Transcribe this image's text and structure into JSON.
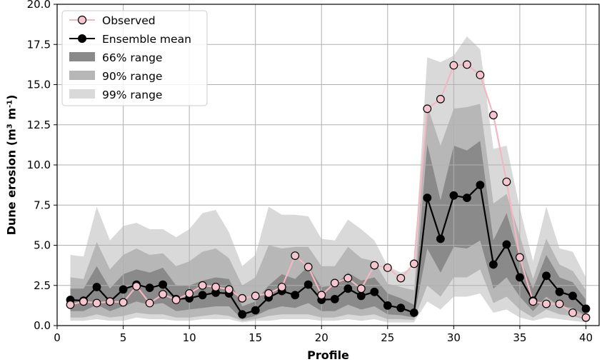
{
  "chart_data": {
    "type": "line",
    "title": "",
    "xlabel": "Profile",
    "ylabel_main": "Dune erosion (m",
    "ylabel_sup1": "3",
    "ylabel_mid": " m",
    "ylabel_sup2": "-1",
    "ylabel_end": ")",
    "xlim": [
      0,
      41
    ],
    "ylim": [
      0,
      20
    ],
    "xticks": [
      0,
      5,
      10,
      15,
      20,
      25,
      30,
      35,
      40
    ],
    "yticks": [
      0.0,
      2.5,
      5.0,
      7.5,
      10.0,
      12.5,
      15.0,
      17.5,
      20.0
    ],
    "xtick_labels": [
      "0",
      "5",
      "10",
      "15",
      "20",
      "25",
      "30",
      "35",
      "40"
    ],
    "ytick_labels": [
      "0.0",
      "2.5",
      "5.0",
      "7.5",
      "10.0",
      "12.5",
      "15.0",
      "17.5",
      "20.0"
    ],
    "grid": true,
    "legend_position": "top-left",
    "x": [
      1,
      2,
      3,
      4,
      5,
      6,
      7,
      8,
      9,
      10,
      11,
      12,
      13,
      14,
      15,
      16,
      17,
      18,
      19,
      20,
      21,
      22,
      23,
      24,
      25,
      26,
      27,
      28,
      29,
      30,
      31,
      32,
      33,
      34,
      35,
      36,
      37,
      38,
      39,
      40
    ],
    "series": [
      {
        "name": "Observed",
        "color": "#f4b6c2",
        "marker": "open-circle",
        "values": [
          1.3,
          1.5,
          1.4,
          1.5,
          1.45,
          2.45,
          1.4,
          1.95,
          1.6,
          2.0,
          2.5,
          2.4,
          2.25,
          1.7,
          1.85,
          2.0,
          2.4,
          4.35,
          3.65,
          1.9,
          2.65,
          2.95,
          2.3,
          3.75,
          3.6,
          2.95,
          3.85,
          13.5,
          14.1,
          16.2,
          16.25,
          15.6,
          13.1,
          8.95,
          4.25,
          1.5,
          1.35,
          1.35,
          0.8,
          0.5
        ]
      },
      {
        "name": "Ensemble mean",
        "color": "#000000",
        "marker": "filled-circle",
        "values": [
          1.6,
          1.55,
          2.4,
          1.5,
          2.25,
          2.55,
          2.35,
          2.55,
          1.65,
          1.7,
          1.9,
          2.05,
          2.0,
          0.7,
          0.95,
          1.75,
          2.15,
          1.9,
          2.55,
          1.6,
          1.65,
          2.3,
          1.85,
          2.1,
          1.25,
          1.1,
          0.8,
          7.95,
          5.4,
          8.1,
          7.95,
          8.75,
          3.8,
          5.05,
          3.0,
          1.55,
          3.1,
          2.1,
          1.85,
          1.05
        ]
      }
    ],
    "bands": [
      {
        "name": "99% range",
        "color": "#d9d9d9",
        "lower": [
          0.3,
          0.3,
          0.4,
          0.3,
          0.3,
          0.5,
          0.4,
          0.4,
          0.3,
          0.3,
          0.4,
          0.4,
          0.4,
          0.2,
          0.3,
          0.3,
          0.4,
          0.4,
          0.4,
          0.3,
          0.3,
          0.4,
          0.3,
          0.4,
          0.2,
          0.2,
          0.2,
          1.5,
          1.0,
          1.8,
          1.8,
          2.0,
          0.8,
          1.0,
          0.5,
          0.3,
          0.5,
          0.4,
          0.3,
          0.2
        ],
        "upper": [
          4.4,
          4.3,
          7.4,
          5.3,
          6.2,
          6.4,
          6.0,
          6.0,
          5.5,
          6.0,
          7.0,
          7.2,
          5.8,
          3.7,
          4.4,
          7.4,
          6.9,
          6.9,
          6.8,
          5.4,
          5.3,
          6.6,
          6.0,
          5.3,
          3.7,
          3.3,
          3.6,
          16.7,
          16.4,
          16.8,
          18.0,
          17.2,
          11.0,
          11.2,
          7.3,
          4.0,
          7.4,
          4.8,
          4.6,
          3.0
        ]
      },
      {
        "name": "90% range",
        "color": "#b7b7b7",
        "lower": [
          0.5,
          0.5,
          0.7,
          0.5,
          0.6,
          0.8,
          0.7,
          0.7,
          0.5,
          0.5,
          0.6,
          0.7,
          0.6,
          0.3,
          0.4,
          0.6,
          0.7,
          0.7,
          0.7,
          0.5,
          0.5,
          0.7,
          0.6,
          0.7,
          0.4,
          0.4,
          0.35,
          2.5,
          1.8,
          3.0,
          3.0,
          3.5,
          1.4,
          1.8,
          1.0,
          0.5,
          1.0,
          0.7,
          0.6,
          0.35
        ],
        "upper": [
          3.0,
          2.9,
          5.2,
          3.5,
          4.4,
          4.8,
          4.4,
          4.5,
          3.7,
          4.0,
          4.6,
          4.8,
          4.2,
          2.5,
          3.0,
          5.0,
          4.8,
          4.9,
          4.9,
          3.7,
          3.7,
          4.9,
          4.2,
          4.0,
          2.6,
          2.4,
          2.2,
          13.7,
          11.2,
          13.5,
          13.6,
          13.8,
          7.6,
          8.2,
          5.6,
          2.9,
          5.4,
          3.8,
          3.4,
          2.2
        ]
      },
      {
        "name": "66% range",
        "color": "#8a8a8a",
        "lower": [
          0.9,
          0.9,
          1.3,
          0.9,
          1.2,
          1.5,
          1.3,
          1.4,
          0.9,
          1.0,
          1.1,
          1.2,
          1.2,
          0.4,
          0.6,
          1.0,
          1.2,
          1.1,
          1.4,
          0.9,
          0.9,
          1.3,
          1.0,
          1.2,
          0.7,
          0.65,
          0.5,
          4.8,
          3.3,
          4.9,
          4.8,
          5.3,
          2.3,
          3.0,
          1.8,
          0.9,
          1.8,
          1.2,
          1.1,
          0.6
        ],
        "upper": [
          2.3,
          2.3,
          3.7,
          2.3,
          3.2,
          3.5,
          3.3,
          3.6,
          2.5,
          2.5,
          2.8,
          3.0,
          2.9,
          1.2,
          1.5,
          2.5,
          3.2,
          2.9,
          3.7,
          2.4,
          2.5,
          3.3,
          2.8,
          3.0,
          2.0,
          1.7,
          1.3,
          11.3,
          7.8,
          11.2,
          10.9,
          11.5,
          5.3,
          7.0,
          4.2,
          2.3,
          4.4,
          3.0,
          2.7,
          1.6
        ]
      }
    ],
    "legend": [
      "Observed",
      "Ensemble mean",
      "66% range",
      "90% range",
      "99% range"
    ]
  }
}
